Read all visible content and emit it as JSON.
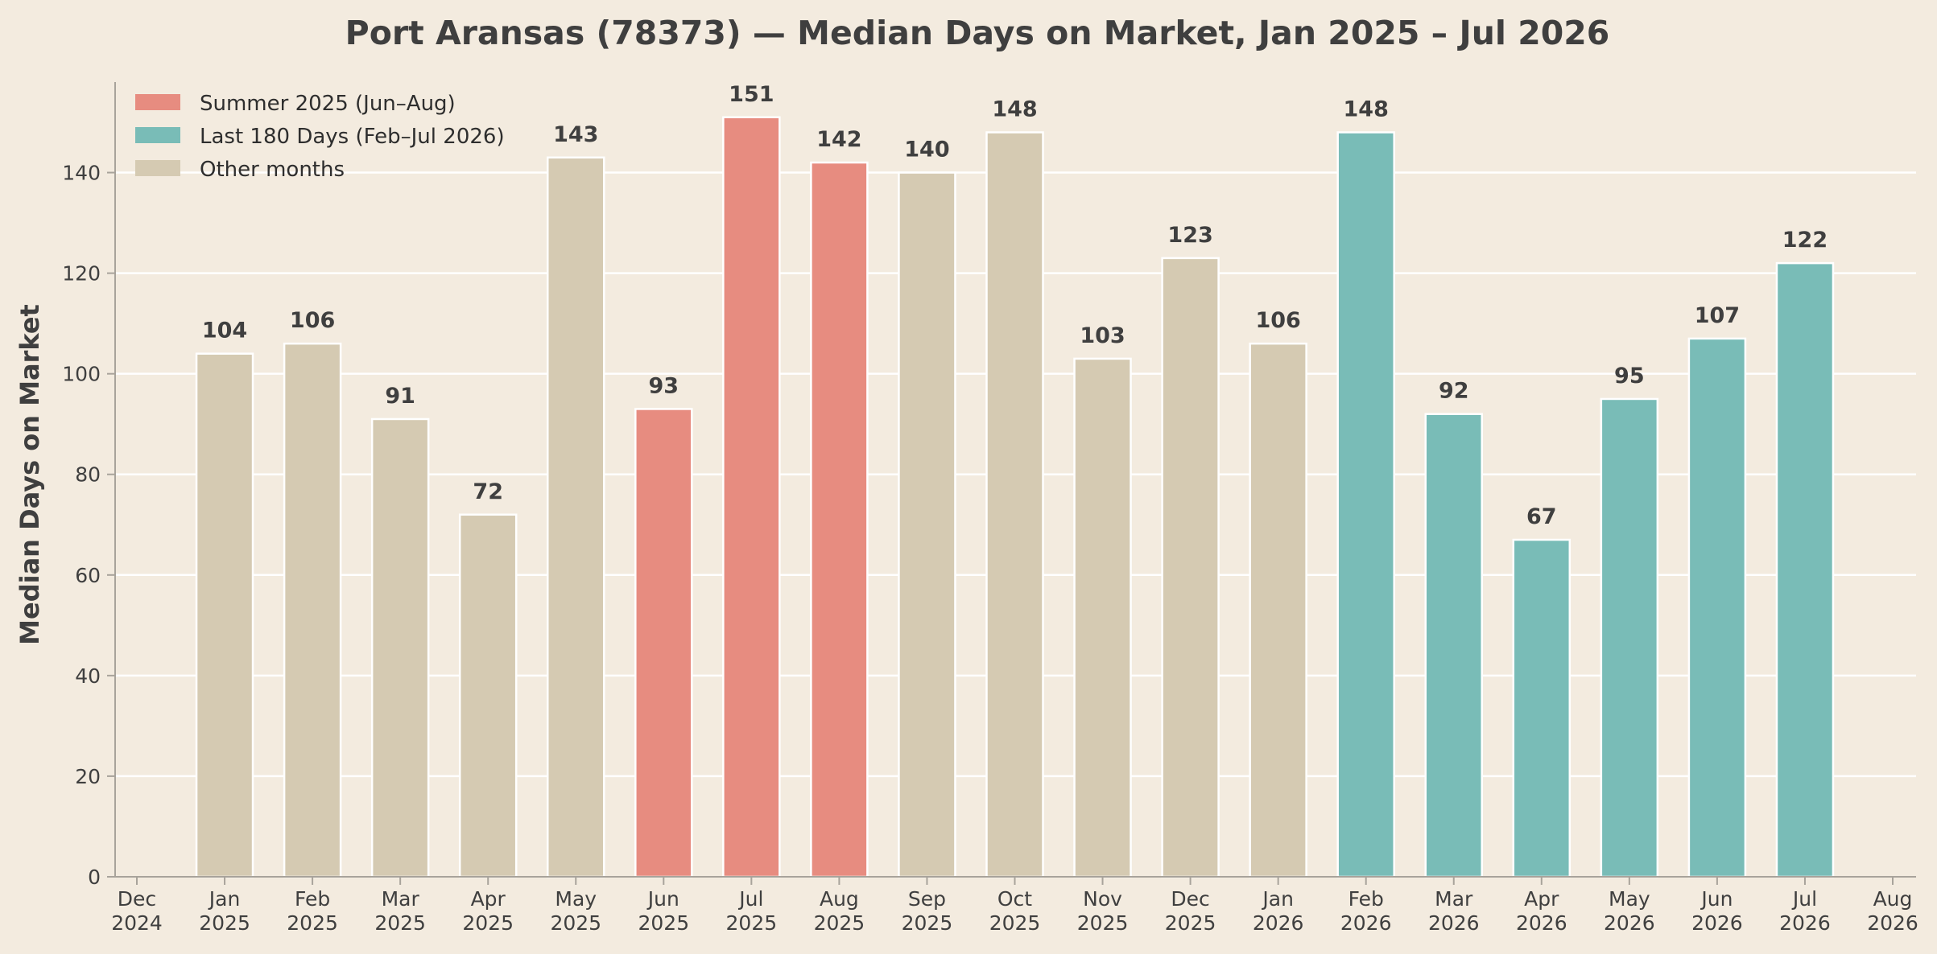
{
  "chart_data": {
    "type": "bar",
    "title": "Port Aransas (78373) — Median Days on Market, Jan 2025 – Jul 2026",
    "ylabel": "Median Days on Market",
    "xlabel": "",
    "ylim": [
      0,
      158
    ],
    "yticks": [
      0,
      20,
      40,
      60,
      80,
      100,
      120,
      140
    ],
    "grid": "horizontal",
    "legend_position": "top-left",
    "x_ticks": [
      {
        "month": "Dec",
        "year": "2024"
      },
      {
        "month": "Jan",
        "year": "2025"
      },
      {
        "month": "Feb",
        "year": "2025"
      },
      {
        "month": "Mar",
        "year": "2025"
      },
      {
        "month": "Apr",
        "year": "2025"
      },
      {
        "month": "May",
        "year": "2025"
      },
      {
        "month": "Jun",
        "year": "2025"
      },
      {
        "month": "Jul",
        "year": "2025"
      },
      {
        "month": "Aug",
        "year": "2025"
      },
      {
        "month": "Sep",
        "year": "2025"
      },
      {
        "month": "Oct",
        "year": "2025"
      },
      {
        "month": "Nov",
        "year": "2025"
      },
      {
        "month": "Dec",
        "year": "2025"
      },
      {
        "month": "Jan",
        "year": "2026"
      },
      {
        "month": "Feb",
        "year": "2026"
      },
      {
        "month": "Mar",
        "year": "2026"
      },
      {
        "month": "Apr",
        "year": "2026"
      },
      {
        "month": "May",
        "year": "2026"
      },
      {
        "month": "Jun",
        "year": "2026"
      },
      {
        "month": "Jul",
        "year": "2026"
      },
      {
        "month": "Aug",
        "year": "2026"
      }
    ],
    "bars": [
      {
        "month": "2025-01",
        "value": 104,
        "label": "104",
        "group": "other"
      },
      {
        "month": "2025-02",
        "value": 106,
        "label": "106",
        "group": "other"
      },
      {
        "month": "2025-03",
        "value": 91,
        "label": "91",
        "group": "other"
      },
      {
        "month": "2025-04",
        "value": 72,
        "label": "72",
        "group": "other"
      },
      {
        "month": "2025-05",
        "value": 143,
        "label": "143",
        "group": "other"
      },
      {
        "month": "2025-06",
        "value": 93,
        "label": "93",
        "group": "summer"
      },
      {
        "month": "2025-07",
        "value": 151,
        "label": "151",
        "group": "summer"
      },
      {
        "month": "2025-08",
        "value": 142,
        "label": "142",
        "group": "summer"
      },
      {
        "month": "2025-09",
        "value": 140,
        "label": "140",
        "group": "other"
      },
      {
        "month": "2025-10",
        "value": 148,
        "label": "148",
        "group": "other"
      },
      {
        "month": "2025-11",
        "value": 103,
        "label": "103",
        "group": "other"
      },
      {
        "month": "2025-12",
        "value": 123,
        "label": "123",
        "group": "other"
      },
      {
        "month": "2026-01",
        "value": 106,
        "label": "106",
        "group": "other"
      },
      {
        "month": "2026-02",
        "value": 148,
        "label": "148",
        "group": "last180"
      },
      {
        "month": "2026-03",
        "value": 92,
        "label": "92",
        "group": "last180"
      },
      {
        "month": "2026-04",
        "value": 67,
        "label": "67",
        "group": "last180"
      },
      {
        "month": "2026-05",
        "value": 95,
        "label": "95",
        "group": "last180"
      },
      {
        "month": "2026-06",
        "value": 107,
        "label": "107",
        "group": "last180"
      },
      {
        "month": "2026-07",
        "value": 122,
        "label": "122",
        "group": "last180"
      }
    ],
    "legend": [
      {
        "group": "summer",
        "label": "Summer 2025 (Jun–Aug)",
        "color": "#e78c80"
      },
      {
        "group": "last180",
        "label": "Last 180 Days (Feb–Jul 2026)",
        "color": "#79bcb7"
      },
      {
        "group": "other",
        "label": "Other months",
        "color": "#d5cab2"
      }
    ],
    "colors": {
      "summer": "#e78c80",
      "last180": "#79bcb7",
      "other": "#d5cab2",
      "background": "#f3ebdf"
    }
  }
}
